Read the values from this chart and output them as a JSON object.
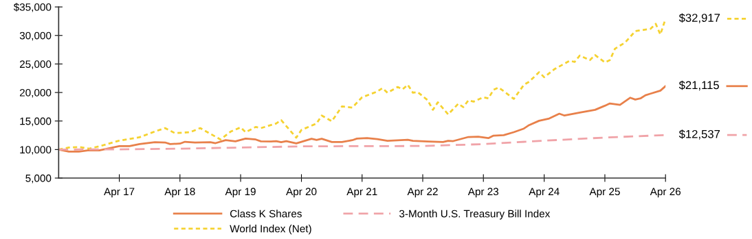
{
  "chart_data": {
    "type": "line",
    "xlim": [
      "2016-04",
      "2026-04"
    ],
    "ylim": [
      5000,
      35000
    ],
    "xticks": [
      {
        "value": "2017-04",
        "label": "Apr 17"
      },
      {
        "value": "2018-04",
        "label": "Apr 18"
      },
      {
        "value": "2019-04",
        "label": "Apr 19"
      },
      {
        "value": "2020-04",
        "label": "Apr 20"
      },
      {
        "value": "2021-04",
        "label": "Apr 21"
      },
      {
        "value": "2022-04",
        "label": "Apr 22"
      },
      {
        "value": "2023-04",
        "label": "Apr 23"
      },
      {
        "value": "2024-04",
        "label": "Apr 24"
      },
      {
        "value": "2025-04",
        "label": "Apr 25"
      },
      {
        "value": "2026-04",
        "label": "Apr 26"
      }
    ],
    "yticks": [
      {
        "value": 5000,
        "label": "5,000"
      },
      {
        "value": 10000,
        "label": "10,000"
      },
      {
        "value": 15000,
        "label": "15,000"
      },
      {
        "value": 20000,
        "label": "20,000"
      },
      {
        "value": 25000,
        "label": "25,000"
      },
      {
        "value": 30000,
        "label": "30,000"
      },
      {
        "value": 35000,
        "label": "$35,000"
      }
    ],
    "grid": false,
    "legend": "bottom",
    "marker": "none",
    "series": [
      {
        "name": "Class K Shares",
        "color": "#e8804a",
        "line_style": "solid",
        "x": [
          "2016-04",
          "2016-06",
          "2016-08",
          "2016-10",
          "2016-12",
          "2017-04",
          "2017-06",
          "2017-08",
          "2017-11",
          "2018-01",
          "2018-02",
          "2018-04",
          "2018-05",
          "2018-07",
          "2018-10",
          "2018-11",
          "2019-01",
          "2019-03",
          "2019-05",
          "2019-07",
          "2019-08",
          "2019-10",
          "2019-11",
          "2019-12",
          "2020-01",
          "2020-03",
          "2020-06",
          "2020-07",
          "2020-08",
          "2020-10",
          "2020-12",
          "2021-02",
          "2021-03",
          "2021-05",
          "2021-07",
          "2021-09",
          "2022-01",
          "2022-02",
          "2022-05",
          "2022-08",
          "2022-09",
          "2022-10",
          "2023-01",
          "2023-03",
          "2023-05",
          "2023-06",
          "2023-08",
          "2023-10",
          "2023-12",
          "2024-01",
          "2024-03",
          "2024-05",
          "2024-07",
          "2024-08",
          "2024-11",
          "2025-02",
          "2025-04",
          "2025-05",
          "2025-07",
          "2025-09",
          "2025-10",
          "2025-11",
          "2025-12",
          "2026-01",
          "2026-03",
          "2026-04"
        ],
        "values": [
          10000,
          9640,
          9640,
          9880,
          9840,
          10600,
          10600,
          10960,
          11280,
          11240,
          10960,
          11040,
          11360,
          11240,
          11280,
          11120,
          11640,
          11440,
          11920,
          11760,
          11440,
          11400,
          11480,
          11280,
          11480,
          11080,
          11880,
          11680,
          11880,
          11320,
          11320,
          11640,
          11920,
          12000,
          11840,
          11520,
          11720,
          11520,
          11400,
          11320,
          11520,
          11480,
          12200,
          12240,
          12000,
          12440,
          12520,
          13040,
          13680,
          14280,
          15040,
          15440,
          16280,
          15960,
          16480,
          16960,
          17680,
          18080,
          17840,
          19080,
          18760,
          18960,
          19520,
          19800,
          20320,
          21115
        ]
      },
      {
        "name": "World Index (Net)",
        "color": "#f5d231",
        "line_style": "dotted",
        "x": [
          "2016-04",
          "2016-06",
          "2016-08",
          "2016-10",
          "2016-12",
          "2017-04",
          "2017-08",
          "2017-11",
          "2018-01",
          "2018-03",
          "2018-06",
          "2018-08",
          "2018-10",
          "2018-12",
          "2019-02",
          "2019-04",
          "2019-05",
          "2019-07",
          "2019-08",
          "2019-11",
          "2019-12",
          "2020-03",
          "2020-04",
          "2020-07",
          "2020-08",
          "2020-10",
          "2020-12",
          "2021-02",
          "2021-04",
          "2021-07",
          "2021-08",
          "2021-09",
          "2021-11",
          "2021-12",
          "2022-01",
          "2022-02",
          "2022-03",
          "2022-05",
          "2022-06",
          "2022-07",
          "2022-09",
          "2022-11",
          "2022-12",
          "2023-01",
          "2023-02",
          "2023-04",
          "2023-05",
          "2023-06",
          "2023-07",
          "2023-08",
          "2023-10",
          "2023-12",
          "2024-01",
          "2024-03",
          "2024-04",
          "2024-06",
          "2024-09",
          "2024-10",
          "2024-11",
          "2025-01",
          "2025-02",
          "2025-04",
          "2025-05",
          "2025-06",
          "2025-08",
          "2025-10",
          "2026-01",
          "2026-02",
          "2026-03",
          "2026-04"
        ],
        "values": [
          10000,
          10360,
          10440,
          10160,
          10560,
          11560,
          12160,
          13160,
          13760,
          12880,
          13040,
          13760,
          12760,
          11760,
          13160,
          13880,
          13040,
          13960,
          13760,
          14560,
          15160,
          12080,
          13440,
          14560,
          15960,
          14960,
          17560,
          17360,
          19160,
          20160,
          20760,
          19960,
          20960,
          20560,
          21360,
          19960,
          20080,
          18640,
          16960,
          18280,
          16160,
          18040,
          17440,
          18640,
          18400,
          19160,
          18960,
          20480,
          20880,
          20240,
          18880,
          21360,
          21880,
          23560,
          22680,
          24080,
          25560,
          25360,
          26480,
          25680,
          26560,
          25280,
          25680,
          27680,
          28760,
          30760,
          31160,
          32040,
          30160,
          32917
        ]
      },
      {
        "name": "3-Month U.S. Treasury Bill Index",
        "color": "#f0a3a8",
        "line_style": "dashed",
        "x": [
          "2016-04",
          "2017-04",
          "2018-04",
          "2019-04",
          "2020-04",
          "2021-04",
          "2022-04",
          "2023-04",
          "2024-04",
          "2025-04",
          "2026-04"
        ],
        "values": [
          10000,
          10040,
          10150,
          10350,
          10560,
          10600,
          10620,
          10950,
          11550,
          12100,
          12537
        ]
      }
    ],
    "annotations": [
      {
        "text": "$21,115",
        "x": "2026-04",
        "y": 21115
      },
      {
        "text": "$32,917",
        "x": "2026-04",
        "y": 32917
      },
      {
        "text": "$12,537",
        "x": "2026-04",
        "y": 12537
      }
    ]
  }
}
